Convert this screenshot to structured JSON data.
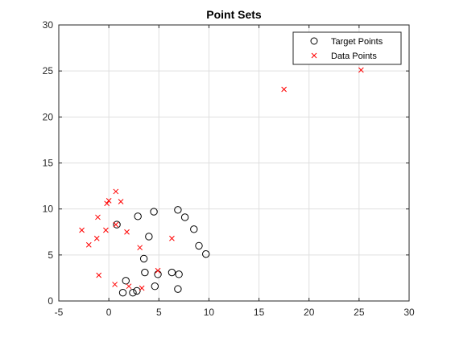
{
  "chart_data": {
    "type": "scatter",
    "title": "Point Sets",
    "xlabel": "",
    "ylabel": "",
    "xlim": [
      -5,
      30
    ],
    "ylim": [
      0,
      30
    ],
    "x_ticks": [
      -5,
      0,
      5,
      10,
      15,
      20,
      25,
      30
    ],
    "y_ticks": [
      0,
      5,
      10,
      15,
      20,
      25,
      30
    ],
    "grid": true,
    "legend_position": "top-right",
    "series": [
      {
        "name": "Target Points",
        "marker": "circle",
        "color": "#000000",
        "points": [
          [
            0.8,
            8.3
          ],
          [
            2.9,
            9.2
          ],
          [
            4.5,
            9.7
          ],
          [
            6.9,
            9.9
          ],
          [
            7.6,
            9.1
          ],
          [
            8.5,
            7.8
          ],
          [
            4.0,
            7.0
          ],
          [
            9.0,
            6.0
          ],
          [
            9.7,
            5.1
          ],
          [
            3.5,
            4.6
          ],
          [
            3.6,
            3.1
          ],
          [
            4.9,
            2.9
          ],
          [
            6.3,
            3.1
          ],
          [
            7.0,
            2.9
          ],
          [
            1.7,
            2.2
          ],
          [
            4.6,
            1.6
          ],
          [
            6.9,
            1.3
          ],
          [
            1.4,
            0.9
          ],
          [
            2.4,
            0.9
          ],
          [
            2.8,
            1.1
          ]
        ]
      },
      {
        "name": "Data Points",
        "marker": "x",
        "color": "#ff0000",
        "points": [
          [
            17.5,
            23.0
          ],
          [
            25.2,
            25.1
          ],
          [
            0.7,
            11.9
          ],
          [
            0.0,
            10.9
          ],
          [
            1.2,
            10.8
          ],
          [
            -0.2,
            10.6
          ],
          [
            -1.1,
            9.1
          ],
          [
            0.7,
            8.3
          ],
          [
            -2.7,
            7.7
          ],
          [
            -0.3,
            7.7
          ],
          [
            1.8,
            7.5
          ],
          [
            -1.2,
            6.8
          ],
          [
            6.3,
            6.8
          ],
          [
            -2.0,
            6.1
          ],
          [
            3.1,
            5.8
          ],
          [
            4.9,
            3.3
          ],
          [
            -1.0,
            2.8
          ],
          [
            0.6,
            1.8
          ],
          [
            2.0,
            1.6
          ],
          [
            3.3,
            1.4
          ]
        ]
      }
    ]
  }
}
